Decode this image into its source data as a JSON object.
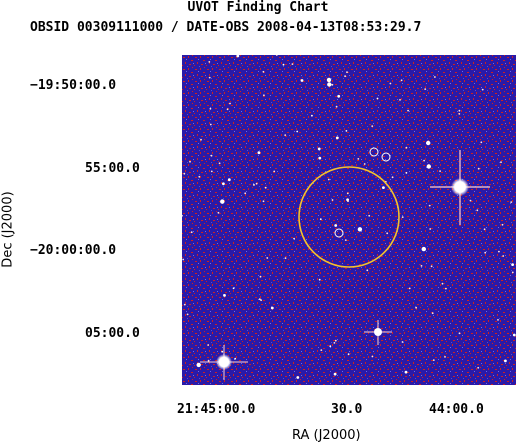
{
  "header": {
    "title": "UVOT Finding Chart",
    "subtitle": "OBSID 00309111000 / DATE-OBS 2008-04-13T08:53:29.7"
  },
  "axes": {
    "ylabel": "Dec (J2000)",
    "xlabel": "RA (J2000)",
    "dec_ticks": [
      "−19:50:00.0",
      "55:00.0",
      "−20:00:00.0",
      "05:00.0"
    ],
    "ra_ticks": [
      "21:45:00.0",
      "30.0",
      "44:00.0"
    ]
  },
  "colors": {
    "background_field": "#2a1aa8",
    "noise_red": "#d0201c",
    "error_circle": "#f2c230",
    "source_marker": "#ffffff",
    "star": "#ffffff"
  }
}
